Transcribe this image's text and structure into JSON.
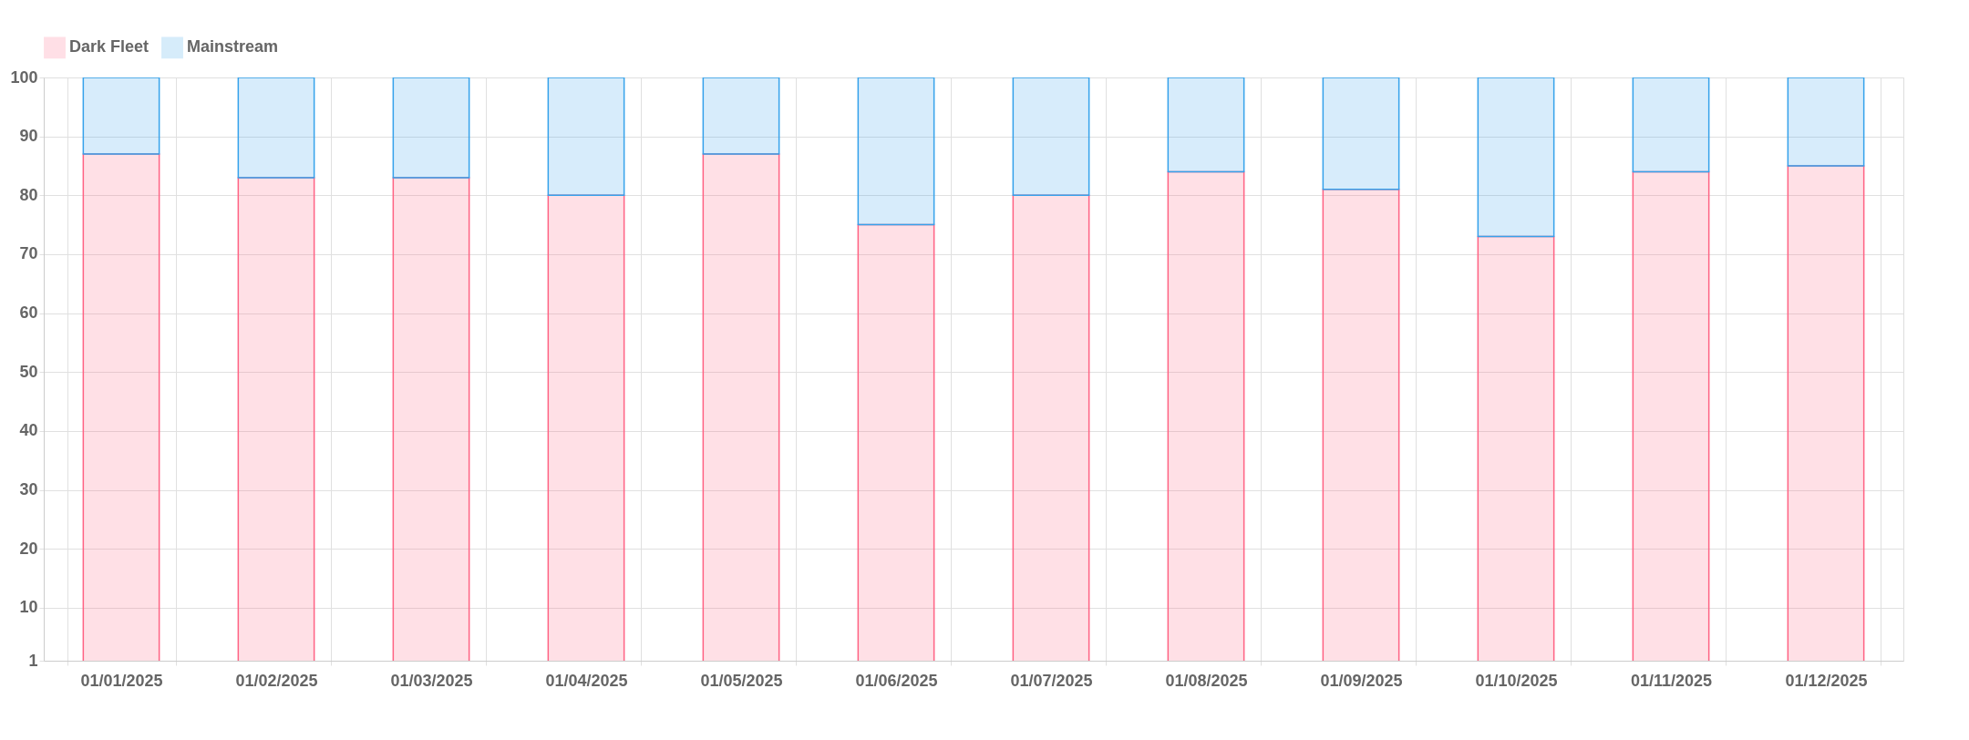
{
  "chart_data": {
    "type": "bar",
    "stacked": true,
    "categories": [
      "01/01/2025",
      "01/02/2025",
      "01/03/2025",
      "01/04/2025",
      "01/05/2025",
      "01/06/2025",
      "01/07/2025",
      "01/08/2025",
      "01/09/2025",
      "01/10/2025",
      "01/11/2025",
      "01/12/2025"
    ],
    "series": [
      {
        "name": "Dark Fleet",
        "color": "#ff6384",
        "values": [
          87,
          83,
          83,
          80,
          87,
          75,
          80,
          84,
          81,
          73,
          84,
          85
        ]
      },
      {
        "name": "Mainstream",
        "color": "#36a2eb",
        "values": [
          13,
          17,
          17,
          20,
          13,
          25,
          20,
          16,
          19,
          27,
          16,
          15
        ]
      }
    ],
    "ylim": [
      1,
      100
    ],
    "yticks": [
      1,
      10,
      20,
      30,
      40,
      50,
      60,
      70,
      80,
      90,
      100
    ],
    "grid": true,
    "legend": "top"
  }
}
